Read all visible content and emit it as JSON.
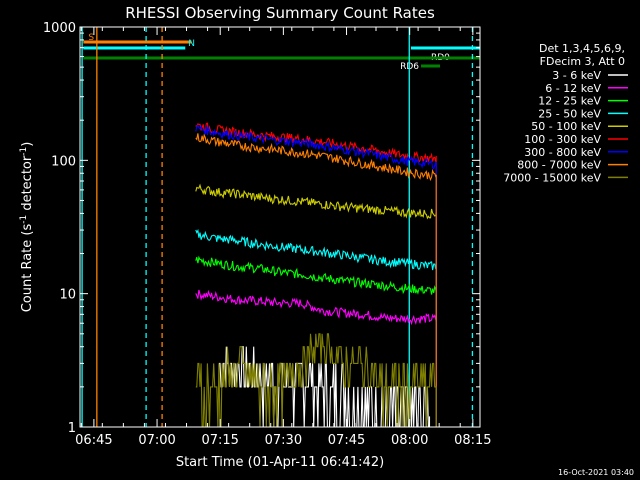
{
  "chart_data": {
    "type": "line",
    "title": "RHESSI Observing Summary Count Rates",
    "xlabel": "Start Time (01-Apr-11 06:41:42)",
    "ylabel_main": "Count Rate (s",
    "ylabel_sup1": "-1",
    "ylabel_mid": " detector",
    "ylabel_sup2": "-1",
    "ylabel_end": ")",
    "yscale": "log",
    "ylim": [
      1,
      1000
    ],
    "xlim_minutes": [
      0,
      95
    ],
    "x_ticks": [
      {
        "label": "06:45",
        "min": 3.3
      },
      {
        "label": "07:00",
        "min": 18.3
      },
      {
        "label": "07:15",
        "min": 33.3
      },
      {
        "label": "07:30",
        "min": 48.3
      },
      {
        "label": "07:45",
        "min": 63.3
      },
      {
        "label": "08:00",
        "min": 78.3
      },
      {
        "label": "08:15",
        "min": 93.3
      }
    ],
    "y_ticks": [
      {
        "label": "1",
        "v": 1
      },
      {
        "label": "10",
        "v": 10
      },
      {
        "label": "100",
        "v": 100
      },
      {
        "label": "1000",
        "v": 1000
      }
    ],
    "legend_header": [
      "Det 1,3,4,5,6,9,",
      "FDecim 3, Att 0"
    ],
    "series": [
      {
        "name": "3 - 6 keV",
        "color": "#ffffff",
        "start": 33,
        "values": [
          3.0,
          2.6,
          2.4,
          2.2,
          2.3,
          2.0,
          1.8,
          1.5,
          1.3,
          1.2,
          1.2
        ]
      },
      {
        "name": "6 - 12 keV",
        "color": "#ff00ff",
        "start": 27.5,
        "values": [
          10,
          9.5,
          9,
          8.8,
          8.5,
          8.5,
          7.5,
          7.2,
          7,
          6.6,
          6.5,
          6.5,
          6.4,
          6.3,
          6.3,
          6.5,
          6.5
        ]
      },
      {
        "name": "12 - 25 keV",
        "color": "#00ff00",
        "start": 27.5,
        "values": [
          18,
          17,
          16,
          15.5,
          14.5,
          14,
          13.2,
          12.5,
          12,
          11.5,
          11,
          10.6,
          10.3,
          10,
          10,
          10,
          10
        ]
      },
      {
        "name": "25 - 50 keV",
        "color": "#00ffff",
        "start": 27.5,
        "values": [
          28,
          26,
          25,
          23.5,
          22.5,
          21.5,
          20.5,
          19.5,
          18.5,
          17.5,
          17,
          16.2,
          15.8,
          15.3,
          15,
          15.5,
          16
        ]
      },
      {
        "name": "50 - 100 keV",
        "color": "#cccc00",
        "start": 27.5,
        "values": [
          62,
          58,
          56,
          53,
          51,
          49,
          47,
          45,
          43.5,
          42,
          40.5,
          40,
          40.5,
          41,
          42,
          43,
          43
        ]
      },
      {
        "name": "100 - 300 keV",
        "color": "#ff0000",
        "start": 27.5,
        "values": [
          185,
          170,
          162,
          155,
          150,
          145,
          138,
          130,
          123,
          115,
          108,
          104,
          101,
          101,
          103,
          106,
          108
        ]
      },
      {
        "name": "300 - 800 keV",
        "color": "#0000ff",
        "start": 27.5,
        "values": [
          175,
          162,
          153,
          146,
          141,
          136,
          129,
          121,
          114,
          106,
          99,
          95,
          92,
          91,
          92,
          94,
          96
        ]
      },
      {
        "name": "800 - 7000 keV",
        "color": "#ff8000",
        "start": 27.5,
        "values": [
          150,
          138,
          130,
          124,
          119,
          114,
          108,
          101,
          94,
          88,
          82,
          78,
          76,
          76,
          77,
          78,
          78
        ]
      },
      {
        "name": "7000 - 15000 keV",
        "color": "#808000",
        "start": 27.5,
        "values": [
          2,
          2,
          3,
          2,
          2,
          3,
          4.5,
          3,
          3,
          2,
          2,
          2,
          2,
          2,
          2,
          2,
          2
        ]
      }
    ],
    "flags": [
      {
        "label": "S",
        "color": "#ff8000",
        "start": 0.8,
        "end": 26.5,
        "level": 0
      },
      {
        "label": "N",
        "color": "#00ffff",
        "start": 0.8,
        "end": 25,
        "level": 1
      },
      {
        "label": "RD0",
        "color": "#00ffff",
        "start": 78.6,
        "end": 95,
        "level": 1
      },
      {
        "label": "",
        "color": "#008000",
        "start": 0.8,
        "end": 95,
        "level": 2
      },
      {
        "label": "RD6",
        "color": "#008000",
        "start": 81,
        "end": 85.5,
        "level": 3
      }
    ],
    "vlines": [
      {
        "min": 0.5,
        "color": "#00ffff",
        "dashed": false
      },
      {
        "min": 4.0,
        "color": "#ff8000",
        "dashed": false
      },
      {
        "min": 15.7,
        "color": "#00ffff",
        "dashed": true
      },
      {
        "min": 19.5,
        "color": "#ff8000",
        "dashed": true
      },
      {
        "min": 78.2,
        "color": "#00ffff",
        "dashed": false
      },
      {
        "min": 93.2,
        "color": "#00ffff",
        "dashed": true
      }
    ],
    "timestamp": "16-Oct-2021 03:40",
    "grid": false,
    "legend_position": "right"
  }
}
